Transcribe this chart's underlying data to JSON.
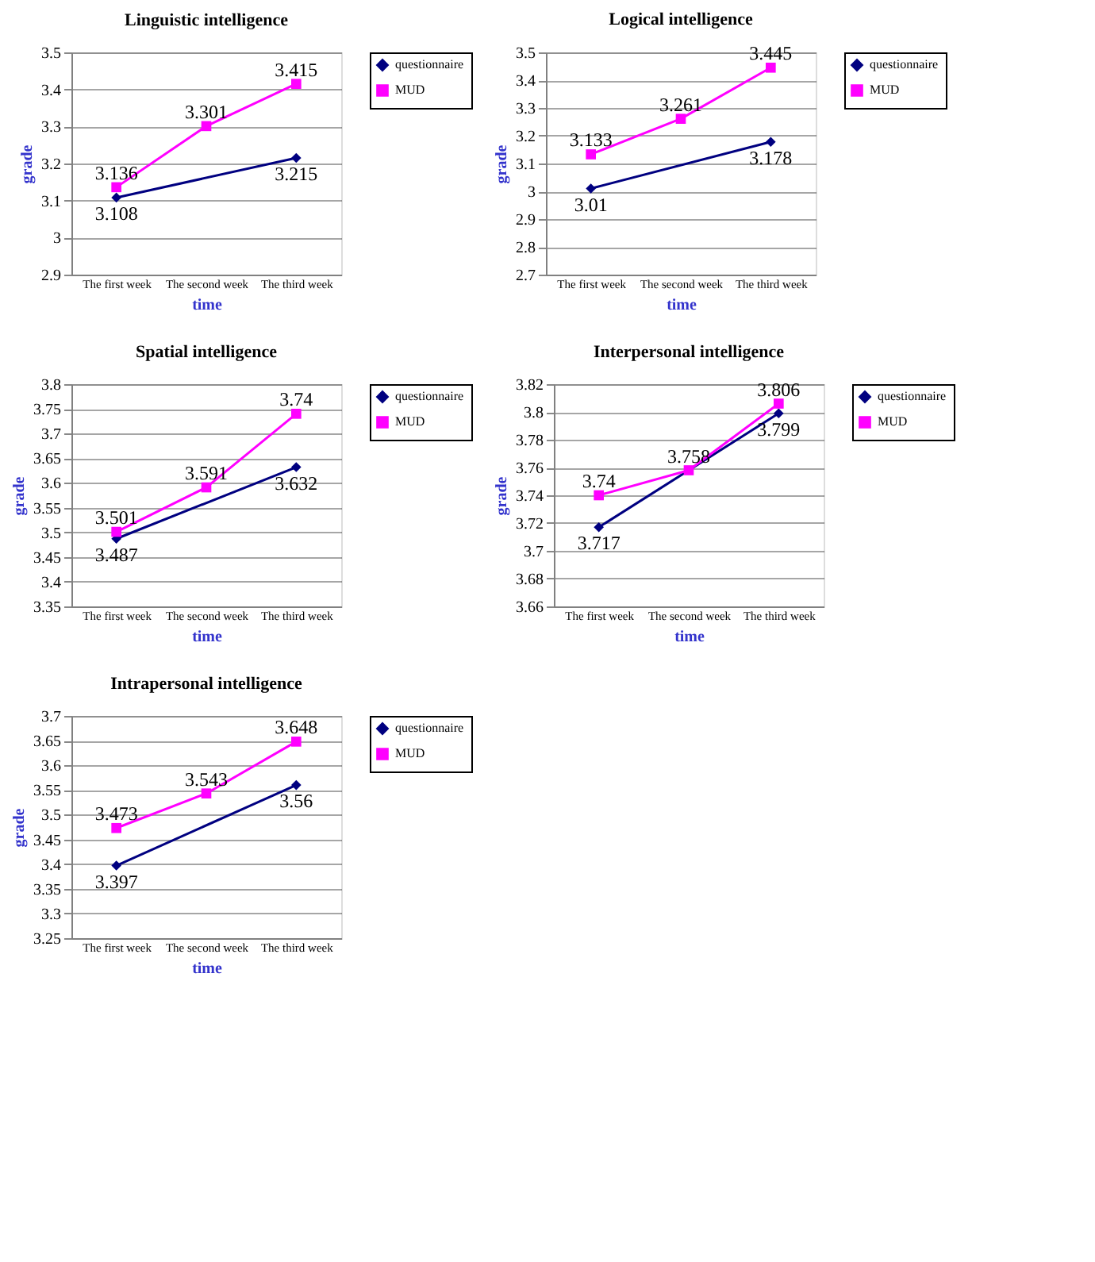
{
  "chart_data": [
    {
      "type": "line",
      "title": "Linguistic intelligence",
      "xlabel": "time",
      "ylabel": "grade",
      "categories": [
        "The first week",
        "The second week",
        "The third week"
      ],
      "series": [
        {
          "name": "questionnaire",
          "color": "#000080",
          "marker": "diamond",
          "values": [
            3.108,
            null,
            3.215
          ]
        },
        {
          "name": "MUD",
          "color": "#ff00ff",
          "marker": "square",
          "values": [
            3.136,
            3.301,
            3.415
          ]
        }
      ],
      "ylim": [
        2.9,
        3.5
      ],
      "yticks": [
        2.9,
        3,
        3.1,
        3.2,
        3.3,
        3.4,
        3.5
      ],
      "grid": "y",
      "legend": "right",
      "data_labels": true
    },
    {
      "type": "line",
      "title": "Logical intelligence",
      "xlabel": "time",
      "ylabel": "grade",
      "categories": [
        "The first week",
        "The second week",
        "The third week"
      ],
      "series": [
        {
          "name": "questionnaire",
          "color": "#000080",
          "marker": "diamond",
          "values": [
            3.01,
            null,
            3.178
          ]
        },
        {
          "name": "MUD",
          "color": "#ff00ff",
          "marker": "square",
          "values": [
            3.133,
            3.261,
            3.445
          ]
        }
      ],
      "ylim": [
        2.7,
        3.5
      ],
      "yticks": [
        2.7,
        2.8,
        2.9,
        3,
        3.1,
        3.2,
        3.3,
        3.4,
        3.5
      ],
      "grid": "y",
      "legend": "right",
      "data_labels": true
    },
    {
      "type": "line",
      "title": "Spatial intelligence",
      "xlabel": "time",
      "ylabel": "grade",
      "categories": [
        "The first week",
        "The second week",
        "The third week"
      ],
      "series": [
        {
          "name": "questionnaire",
          "color": "#000080",
          "marker": "diamond",
          "values": [
            3.487,
            null,
            3.632
          ]
        },
        {
          "name": "MUD",
          "color": "#ff00ff",
          "marker": "square",
          "values": [
            3.501,
            3.591,
            3.74
          ]
        }
      ],
      "ylim": [
        3.35,
        3.8
      ],
      "yticks": [
        3.35,
        3.4,
        3.45,
        3.5,
        3.55,
        3.6,
        3.65,
        3.7,
        3.75,
        3.8
      ],
      "grid": "y",
      "legend": "right",
      "data_labels": true
    },
    {
      "type": "line",
      "title": "Interpersonal intelligence",
      "xlabel": "time",
      "ylabel": "grade",
      "categories": [
        "The first week",
        "The second week",
        "The third week"
      ],
      "series": [
        {
          "name": "questionnaire",
          "color": "#000080",
          "marker": "diamond",
          "values": [
            3.717,
            null,
            3.799
          ]
        },
        {
          "name": "MUD",
          "color": "#ff00ff",
          "marker": "square",
          "values": [
            3.74,
            3.758,
            3.806
          ]
        }
      ],
      "ylim": [
        3.66,
        3.82
      ],
      "yticks": [
        3.66,
        3.68,
        3.7,
        3.72,
        3.74,
        3.76,
        3.78,
        3.8,
        3.82
      ],
      "grid": "y",
      "legend": "right",
      "data_labels": true
    },
    {
      "type": "line",
      "title": "Intrapersonal intelligence",
      "xlabel": "time",
      "ylabel": "grade",
      "categories": [
        "The first week",
        "The second week",
        "The third week"
      ],
      "series": [
        {
          "name": "questionnaire",
          "color": "#000080",
          "marker": "diamond",
          "values": [
            3.397,
            null,
            3.56
          ]
        },
        {
          "name": "MUD",
          "color": "#ff00ff",
          "marker": "square",
          "values": [
            3.473,
            3.543,
            3.648
          ]
        }
      ],
      "ylim": [
        3.25,
        3.7
      ],
      "yticks": [
        3.25,
        3.3,
        3.35,
        3.4,
        3.45,
        3.5,
        3.55,
        3.6,
        3.65,
        3.7
      ],
      "grid": "y",
      "legend": "right",
      "data_labels": true
    }
  ]
}
